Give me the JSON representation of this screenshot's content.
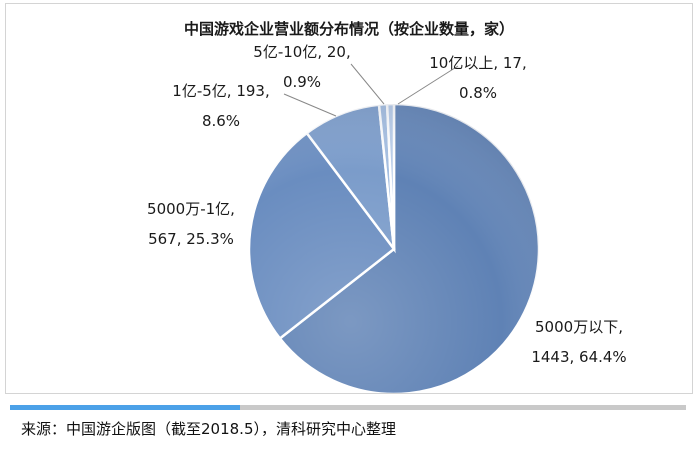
{
  "chart_data": {
    "type": "pie",
    "title": "中国游戏企业营业额分布情况（按企业数量，家）",
    "slices": [
      {
        "name": "5000万以下",
        "count": 1443,
        "percent": 64.4,
        "label_lines": [
          "5000万以下,",
          "1443, 64.4%"
        ],
        "color": "#5f82b5"
      },
      {
        "name": "5000万-1亿",
        "count": 567,
        "percent": 25.3,
        "label_lines": [
          "5000万-1亿,",
          "567, 25.3%"
        ],
        "color": "#6a8dc0"
      },
      {
        "name": "1亿-5亿",
        "count": 193,
        "percent": 8.6,
        "label_lines": [
          "1亿-5亿, 193,",
          "8.6%"
        ],
        "color": "#7b9cca"
      },
      {
        "name": "5亿-10亿",
        "count": 20,
        "percent": 0.9,
        "label_lines": [
          "5亿-10亿, 20,",
          "0.9%"
        ],
        "color": "#a3bde0"
      },
      {
        "name": "10亿以上",
        "count": 17,
        "percent": 0.8,
        "label_lines": [
          "10亿以上, 17,",
          "0.8%"
        ],
        "color": "#b9cde9"
      }
    ]
  },
  "footer": {
    "source": "来源：中国游企版图（截至2018.5），清科研究中心整理",
    "progress_fraction": 0.34,
    "progress_color": "#4ba1e8",
    "track_color": "#c9c9c9"
  }
}
